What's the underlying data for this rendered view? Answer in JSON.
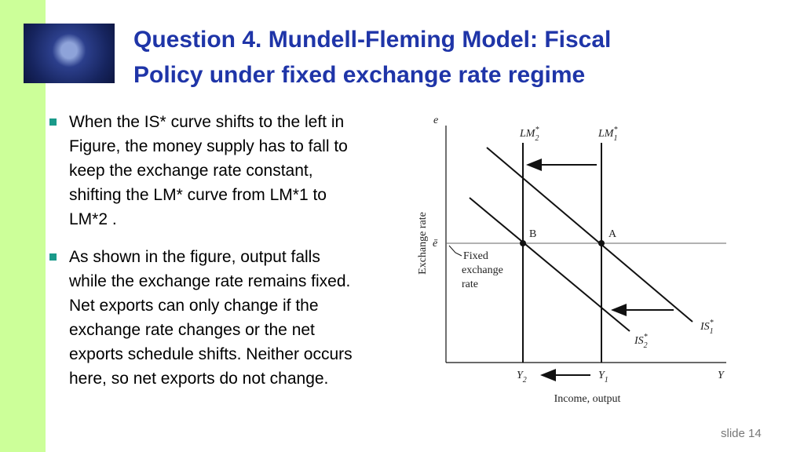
{
  "header": {
    "title_lines": [
      "Question 4. Mundell-Fleming Model: Fiscal",
      "Policy under fixed exchange rate regime"
    ]
  },
  "bullets": [
    "When the IS* curve shifts to the left in Figure, the money supply has to fall to keep the exchange rate constant, shifting the LM* curve from LM*1 to LM*2 .",
    "As shown in the figure, output falls while the exchange rate remains fixed. Net exports can only change if the exchange rate changes or the net exports schedule shifts. Neither occurs here, so net exports do not change."
  ],
  "figure": {
    "y_axis_symbol": "e",
    "y_axis_label": "Exchange rate",
    "x_axis_symbol": "Y",
    "x_axis_label": "Income, output",
    "fixed_rate_symbol": "ē",
    "fixed_rate_label_lines": [
      "Fixed",
      "exchange",
      "rate"
    ],
    "lm2": {
      "base": "LM",
      "sup": "*",
      "sub": "2"
    },
    "lm1": {
      "base": "LM",
      "sup": "*",
      "sub": "1"
    },
    "is1": {
      "base": "IS",
      "sup": "*",
      "sub": "1"
    },
    "is2": {
      "base": "IS",
      "sup": "*",
      "sub": "2"
    },
    "point_b": "B",
    "point_a": "A",
    "y2": {
      "base": "Y",
      "sub": "2"
    },
    "y1": {
      "base": "Y",
      "sub": "1"
    }
  },
  "footer": {
    "slide_number": "slide 14"
  }
}
